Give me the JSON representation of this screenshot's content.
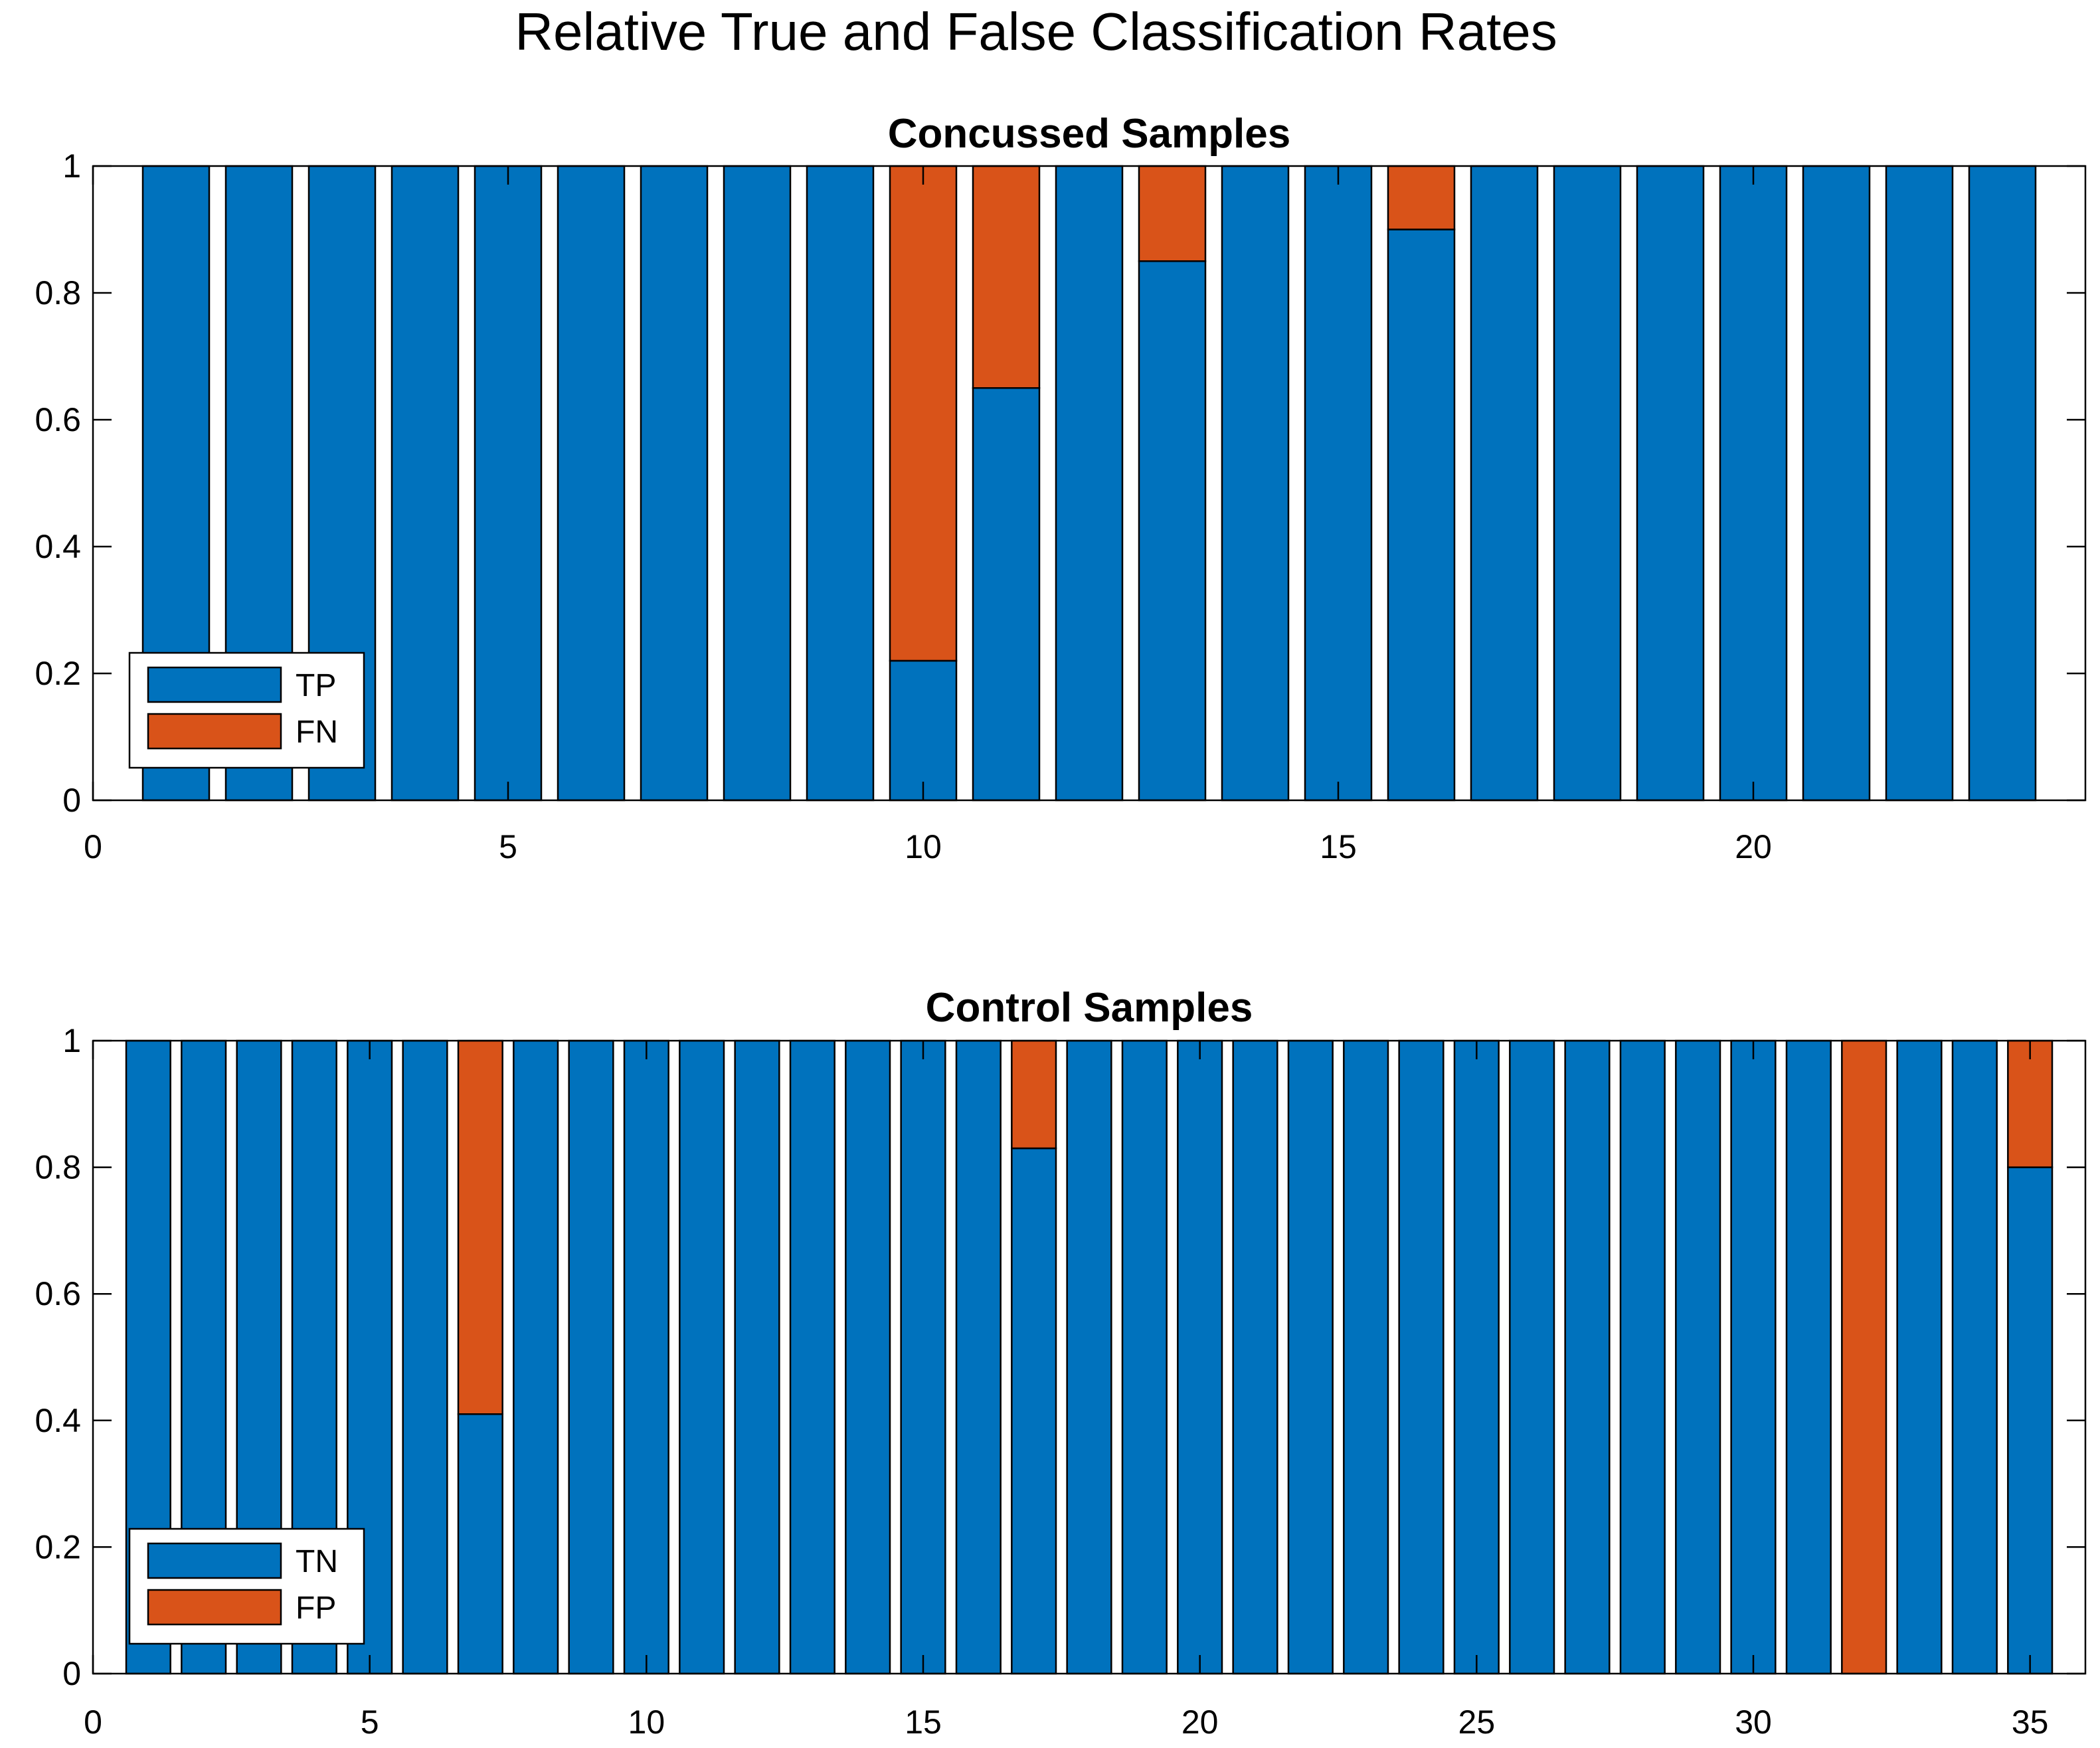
{
  "title": "Relative True and False Classification Rates",
  "colors": {
    "true": "#0072BD",
    "false": "#D95319"
  },
  "chart_data": [
    {
      "type": "bar",
      "stacked": true,
      "title": "Concussed Samples",
      "xlim": [
        0,
        24
      ],
      "ylim": [
        0,
        1
      ],
      "xticks": [
        0,
        5,
        10,
        15,
        20
      ],
      "yticks": [
        0,
        0.2,
        0.4,
        0.6,
        0.8,
        1
      ],
      "ytick_labels": [
        "0",
        "0.2",
        "0.4",
        "0.6",
        "0.8",
        "1"
      ],
      "x": [
        1,
        2,
        3,
        4,
        5,
        6,
        7,
        8,
        9,
        10,
        11,
        12,
        13,
        14,
        15,
        16,
        17,
        18,
        19,
        20,
        21,
        22,
        23
      ],
      "legend_position": "bottom-left",
      "series": [
        {
          "name": "TP",
          "color": "#0072BD",
          "values": [
            1,
            1,
            1,
            1,
            1,
            1,
            1,
            1,
            1,
            0.22,
            0.65,
            1,
            0.85,
            1,
            1,
            0.9,
            1,
            1,
            1,
            1,
            1,
            1,
            1
          ]
        },
        {
          "name": "FN",
          "color": "#D95319",
          "values": [
            0,
            0,
            0,
            0,
            0,
            0,
            0,
            0,
            0,
            0.78,
            0.35,
            0,
            0.15,
            0,
            0,
            0.1,
            0,
            0,
            0,
            0,
            0,
            0,
            0
          ]
        }
      ]
    },
    {
      "type": "bar",
      "stacked": true,
      "title": "Control Samples",
      "xlim": [
        0,
        36
      ],
      "ylim": [
        0,
        1
      ],
      "xticks": [
        0,
        5,
        10,
        15,
        20,
        25,
        30,
        35
      ],
      "yticks": [
        0,
        0.2,
        0.4,
        0.6,
        0.8,
        1
      ],
      "ytick_labels": [
        "0",
        "0.2",
        "0.4",
        "0.6",
        "0.8",
        "1"
      ],
      "x": [
        1,
        2,
        3,
        4,
        5,
        6,
        7,
        8,
        9,
        10,
        11,
        12,
        13,
        14,
        15,
        16,
        17,
        18,
        19,
        20,
        21,
        22,
        23,
        24,
        25,
        26,
        27,
        28,
        29,
        30,
        31,
        32,
        33,
        34,
        35
      ],
      "legend_position": "bottom-left",
      "series": [
        {
          "name": "TN",
          "color": "#0072BD",
          "values": [
            1,
            1,
            1,
            1,
            1,
            1,
            0.41,
            1,
            1,
            1,
            1,
            1,
            1,
            1,
            1,
            1,
            0.83,
            1,
            1,
            1,
            1,
            1,
            1,
            1,
            1,
            1,
            1,
            1,
            1,
            1,
            1,
            0,
            1,
            1,
            0.8
          ]
        },
        {
          "name": "FP",
          "color": "#D95319",
          "values": [
            0,
            0,
            0,
            0,
            0,
            0,
            0.59,
            0,
            0,
            0,
            0,
            0,
            0,
            0,
            0,
            0,
            0.17,
            0,
            0,
            0,
            0,
            0,
            0,
            0,
            0,
            0,
            0,
            0,
            0,
            0,
            0,
            1,
            0,
            0,
            0.2
          ]
        }
      ]
    }
  ]
}
